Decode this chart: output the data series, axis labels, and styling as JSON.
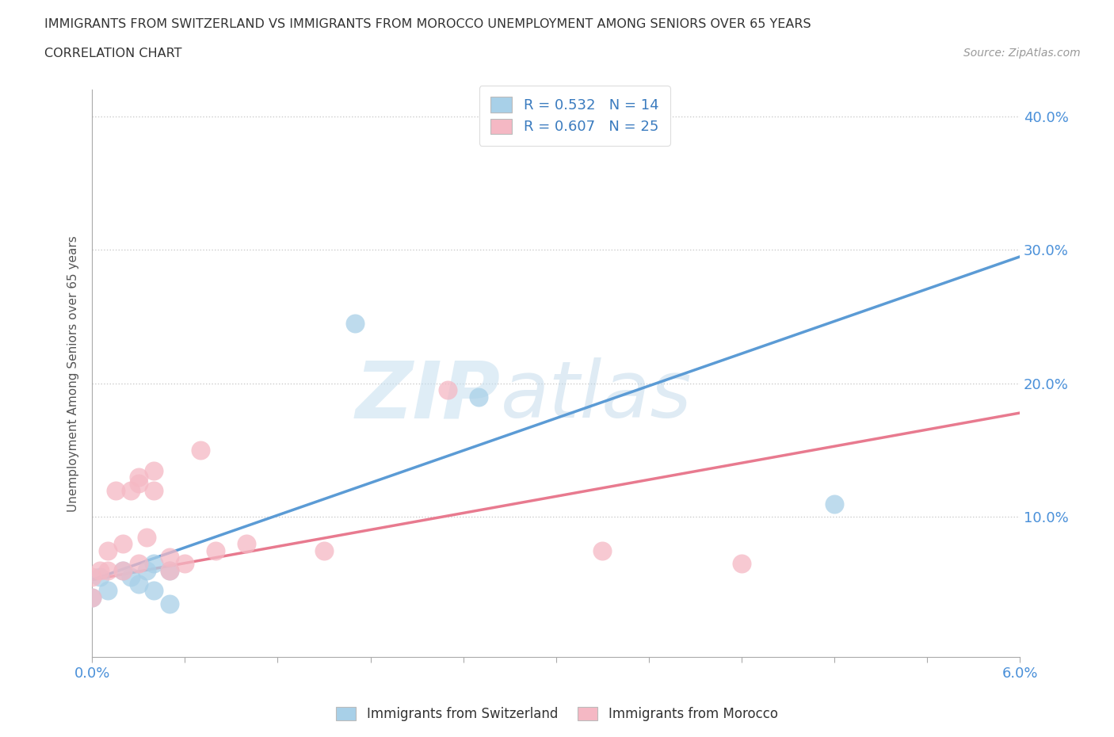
{
  "title_line1": "IMMIGRANTS FROM SWITZERLAND VS IMMIGRANTS FROM MOROCCO UNEMPLOYMENT AMONG SENIORS OVER 65 YEARS",
  "title_line2": "CORRELATION CHART",
  "source": "Source: ZipAtlas.com",
  "ylabel_label": "Unemployment Among Seniors over 65 years",
  "xlim": [
    0.0,
    0.06
  ],
  "ylim": [
    -0.005,
    0.42
  ],
  "x_ticks": [
    0.0,
    0.006,
    0.012,
    0.018,
    0.024,
    0.03,
    0.036,
    0.042,
    0.048,
    0.054,
    0.06
  ],
  "x_tick_labels": [
    "0.0%",
    "",
    "",
    "",
    "",
    "",
    "",
    "",
    "",
    "",
    "6.0%"
  ],
  "y_ticks": [
    0.0,
    0.1,
    0.2,
    0.3,
    0.4
  ],
  "y_tick_labels_right": [
    "",
    "10.0%",
    "20.0%",
    "30.0%",
    "40.0%"
  ],
  "switzerland_scatter_x": [
    0.0,
    0.0005,
    0.001,
    0.002,
    0.0025,
    0.003,
    0.0035,
    0.004,
    0.004,
    0.005,
    0.005,
    0.017,
    0.025,
    0.048
  ],
  "switzerland_scatter_y": [
    0.04,
    0.055,
    0.045,
    0.06,
    0.055,
    0.05,
    0.06,
    0.045,
    0.065,
    0.035,
    0.06,
    0.245,
    0.19,
    0.11
  ],
  "morocco_scatter_x": [
    0.0,
    0.0,
    0.0005,
    0.001,
    0.001,
    0.0015,
    0.002,
    0.002,
    0.0025,
    0.003,
    0.003,
    0.003,
    0.0035,
    0.004,
    0.004,
    0.005,
    0.005,
    0.006,
    0.007,
    0.008,
    0.01,
    0.015,
    0.023,
    0.033,
    0.042
  ],
  "morocco_scatter_y": [
    0.04,
    0.055,
    0.06,
    0.06,
    0.075,
    0.12,
    0.06,
    0.08,
    0.12,
    0.065,
    0.125,
    0.13,
    0.085,
    0.12,
    0.135,
    0.06,
    0.07,
    0.065,
    0.15,
    0.075,
    0.08,
    0.075,
    0.195,
    0.075,
    0.065
  ],
  "switzerland_line_x0": 0.0,
  "switzerland_line_y0": 0.053,
  "switzerland_line_x1": 0.06,
  "switzerland_line_y1": 0.295,
  "morocco_line_x0": 0.0,
  "morocco_line_y0": 0.053,
  "morocco_line_x1": 0.06,
  "morocco_line_y1": 0.178,
  "switzerland_R": 0.532,
  "switzerland_N": 14,
  "morocco_R": 0.607,
  "morocco_N": 25,
  "switzerland_color": "#a8d0e8",
  "morocco_color": "#f5b8c4",
  "switzerland_line_color": "#5b9bd5",
  "morocco_line_color": "#e87a8f",
  "watermark_zip": "ZIP",
  "watermark_atlas": "atlas",
  "background_color": "#ffffff",
  "grid_color": "#cccccc",
  "axis_color": "#aaaaaa",
  "label_color": "#4a90d9",
  "title_color": "#333333",
  "ylabel_color": "#555555",
  "legend_label_color": "#3a7bbf"
}
